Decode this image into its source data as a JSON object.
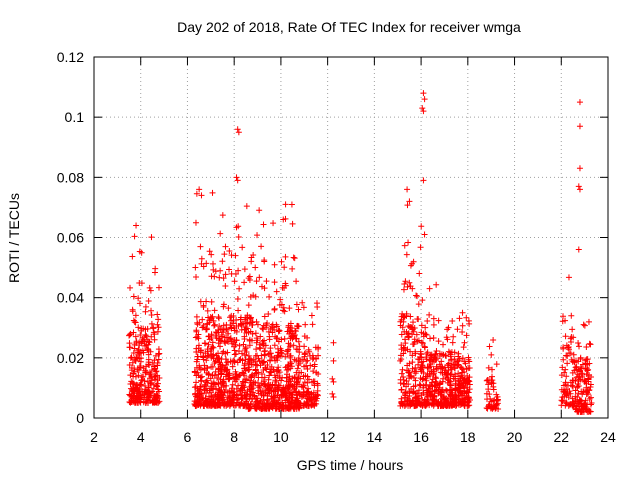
{
  "chart_data": {
    "type": "scatter",
    "title": "Day 202 of 2018, Rate Of TEC Index for receiver wmga",
    "xlabel": "GPS time / hours",
    "ylabel": "ROTI / TECUs",
    "xlim": [
      2,
      24
    ],
    "ylim": [
      0,
      0.12
    ],
    "xticks": [
      2,
      4,
      6,
      8,
      10,
      12,
      14,
      16,
      18,
      20,
      22,
      24
    ],
    "yticks": [
      0,
      0.02,
      0.04,
      0.06,
      0.08,
      0.1,
      0.12
    ],
    "ytick_labels": [
      "0",
      "0.02",
      "0.04",
      "0.06",
      "0.08",
      "0.1",
      "0.12"
    ],
    "grid": true,
    "marker": "+",
    "series_color": "#ff0000",
    "clusters": [
      {
        "x_start": 3.5,
        "x_end": 4.8,
        "y_min": 0.005,
        "y_max": 0.065,
        "density": 0.9
      },
      {
        "x_start": 6.3,
        "x_end": 8.6,
        "y_min": 0.004,
        "y_max": 0.076,
        "density": 1.0
      },
      {
        "x_start": 8.6,
        "x_end": 10.8,
        "y_min": 0.003,
        "y_max": 0.072,
        "density": 1.0
      },
      {
        "x_start": 10.8,
        "x_end": 11.6,
        "y_min": 0.004,
        "y_max": 0.051,
        "density": 0.6
      },
      {
        "x_start": 15.1,
        "x_end": 16.2,
        "y_min": 0.004,
        "y_max": 0.077,
        "density": 0.8
      },
      {
        "x_start": 16.2,
        "x_end": 18.1,
        "y_min": 0.004,
        "y_max": 0.047,
        "density": 0.9
      },
      {
        "x_start": 18.8,
        "x_end": 19.3,
        "y_min": 0.003,
        "y_max": 0.027,
        "density": 0.4
      },
      {
        "x_start": 22.0,
        "x_end": 22.6,
        "y_min": 0.004,
        "y_max": 0.053,
        "density": 0.5
      },
      {
        "x_start": 22.6,
        "x_end": 23.3,
        "y_min": 0.002,
        "y_max": 0.047,
        "density": 0.7
      }
    ],
    "outliers": [
      {
        "x": 8.15,
        "y": 0.096
      },
      {
        "x": 8.2,
        "y": 0.095
      },
      {
        "x": 8.1,
        "y": 0.08
      },
      {
        "x": 8.15,
        "y": 0.079
      },
      {
        "x": 16.1,
        "y": 0.108
      },
      {
        "x": 16.15,
        "y": 0.106
      },
      {
        "x": 16.05,
        "y": 0.103
      },
      {
        "x": 16.1,
        "y": 0.102
      },
      {
        "x": 16.1,
        "y": 0.079
      },
      {
        "x": 22.8,
        "y": 0.105
      },
      {
        "x": 22.8,
        "y": 0.097
      },
      {
        "x": 22.8,
        "y": 0.083
      },
      {
        "x": 22.75,
        "y": 0.077
      },
      {
        "x": 22.8,
        "y": 0.076
      },
      {
        "x": 22.75,
        "y": 0.056
      },
      {
        "x": 12.25,
        "y": 0.025
      },
      {
        "x": 12.25,
        "y": 0.019
      },
      {
        "x": 12.2,
        "y": 0.013
      },
      {
        "x": 12.25,
        "y": 0.012
      },
      {
        "x": 12.2,
        "y": 0.008
      },
      {
        "x": 12.25,
        "y": 0.007
      },
      {
        "x": 10.2,
        "y": 0.071
      },
      {
        "x": 10.1,
        "y": 0.066
      },
      {
        "x": 6.5,
        "y": 0.076
      },
      {
        "x": 6.6,
        "y": 0.074
      },
      {
        "x": 3.8,
        "y": 0.064
      },
      {
        "x": 15.4,
        "y": 0.076
      },
      {
        "x": 15.5,
        "y": 0.072
      }
    ]
  }
}
